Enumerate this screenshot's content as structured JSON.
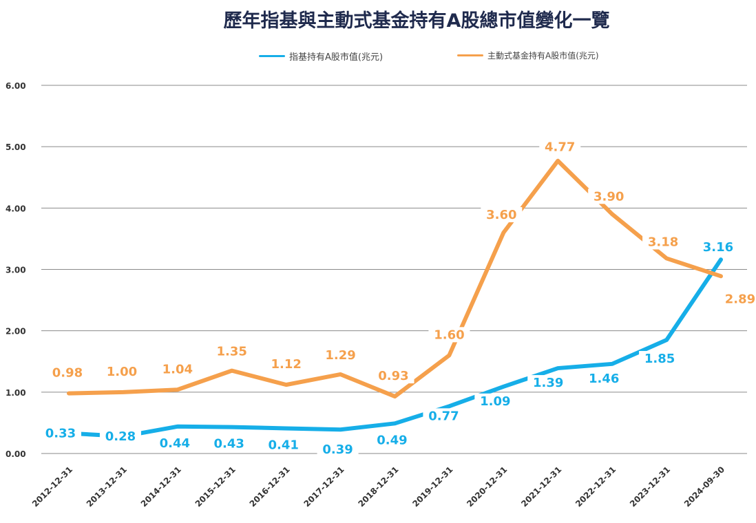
{
  "chart_data": {
    "type": "line",
    "title": "歷年指基與主動式基金持有A股總市值變化一覽",
    "categories": [
      "2012-12-31",
      "2013-12-31",
      "2014-12-31",
      "2015-12-31",
      "2016-12-31",
      "2017-12-31",
      "2018-12-31",
      "2019-12-31",
      "2020-12-31",
      "2021-12-31",
      "2022-12-31",
      "2023-12-31",
      "2024-09-30"
    ],
    "series": [
      {
        "name": "指基持有A股市值(兆元)",
        "color": "#16aee8",
        "values": [
          0.33,
          0.28,
          0.44,
          0.43,
          0.41,
          0.39,
          0.49,
          0.77,
          1.09,
          1.39,
          1.46,
          1.85,
          3.16
        ],
        "labels": [
          "0.33",
          "0.28",
          "0.44",
          "0.43",
          "0.41",
          "0.39",
          "0.49",
          "0.77",
          "1.09",
          "1.39",
          "1.46",
          "1.85",
          "3.16"
        ]
      },
      {
        "name": "主動式基金持有A股市值(兆元)",
        "color": "#f5a04c",
        "values": [
          0.98,
          1.0,
          1.04,
          1.35,
          1.12,
          1.29,
          0.93,
          1.6,
          3.6,
          4.77,
          3.9,
          3.18,
          2.89
        ],
        "labels": [
          "0.98",
          "1.00",
          "1.04",
          "1.35",
          "1.12",
          "1.29",
          "0.93",
          "1.60",
          "3.60",
          "4.77",
          "3.90",
          "3.18",
          "2.89"
        ]
      }
    ],
    "y_ticks": [
      "0.00",
      "1.00",
      "2.00",
      "3.00",
      "4.00",
      "5.00",
      "6.00"
    ],
    "ylim": [
      0,
      6
    ],
    "grid": true,
    "legend_position": "top"
  }
}
